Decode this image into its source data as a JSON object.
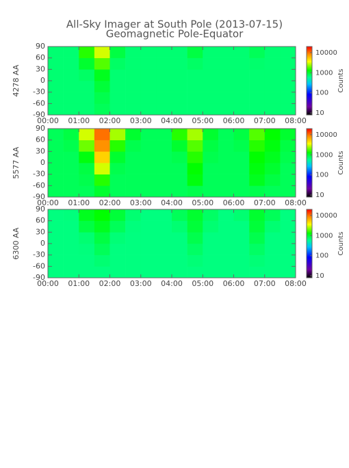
{
  "title": "All-Sky Imager at South Pole (2013-07-15)",
  "subtitle": "Geomagnetic Pole-Equator",
  "chart_data": [
    {
      "type": "heatmap",
      "ylabel": "4278 AA",
      "colorbar_label": "Counts",
      "x_bins": [
        0,
        0.5,
        1,
        1.5,
        2,
        2.5,
        3,
        3.5,
        4,
        4.5,
        5,
        5.5,
        6,
        6.5,
        7,
        7.5,
        8
      ],
      "y_bins": [
        -90,
        -60,
        -30,
        0,
        30,
        60,
        90
      ],
      "values": [
        [
          700,
          700,
          700,
          800,
          700,
          700,
          700,
          700,
          700,
          700,
          700,
          700,
          700,
          700,
          700,
          700
        ],
        [
          700,
          700,
          700,
          850,
          700,
          700,
          700,
          700,
          700,
          700,
          700,
          700,
          700,
          700,
          700,
          700
        ],
        [
          700,
          700,
          700,
          950,
          700,
          700,
          700,
          700,
          700,
          700,
          700,
          700,
          700,
          700,
          700,
          700
        ],
        [
          700,
          700,
          750,
          1100,
          700,
          700,
          700,
          700,
          700,
          700,
          700,
          700,
          700,
          700,
          700,
          700
        ],
        [
          700,
          700,
          1000,
          1800,
          750,
          700,
          700,
          700,
          700,
          750,
          700,
          700,
          700,
          720,
          700,
          700
        ],
        [
          700,
          700,
          1500,
          3000,
          900,
          700,
          700,
          700,
          700,
          900,
          700,
          700,
          700,
          800,
          700,
          700
        ]
      ],
      "xlim": [
        0,
        8
      ],
      "xticks": [
        {
          "value": 0,
          "label": "00:00"
        },
        {
          "value": 1,
          "label": "01:00"
        },
        {
          "value": 2,
          "label": "02:00"
        },
        {
          "value": 3,
          "label": "03:00"
        },
        {
          "value": 4,
          "label": "04:00"
        },
        {
          "value": 5,
          "label": "05:00"
        },
        {
          "value": 6,
          "label": "06:00"
        },
        {
          "value": 7,
          "label": "07:00"
        },
        {
          "value": 8,
          "label": "08:00"
        }
      ],
      "ylim": [
        -90,
        90
      ],
      "yticks": [
        90,
        60,
        30,
        0,
        -30,
        -60,
        -90
      ],
      "zlim": [
        8,
        20000
      ],
      "zticks": [
        10000,
        1000,
        100,
        10
      ],
      "log_color_scale": true
    },
    {
      "type": "heatmap",
      "ylabel": "5577 AA",
      "colorbar_label": "Counts",
      "x_bins": [
        0,
        0.5,
        1,
        1.5,
        2,
        2.5,
        3,
        3.5,
        4,
        4.5,
        5,
        5.5,
        6,
        6.5,
        7,
        7.5,
        8
      ],
      "y_bins": [
        -90,
        -60,
        -30,
        0,
        30,
        60,
        90
      ],
      "values": [
        [
          800,
          800,
          800,
          1000,
          800,
          800,
          800,
          800,
          800,
          850,
          800,
          800,
          800,
          850,
          800,
          800
        ],
        [
          800,
          800,
          850,
          1500,
          800,
          800,
          800,
          800,
          800,
          1200,
          800,
          800,
          800,
          1100,
          900,
          800
        ],
        [
          800,
          800,
          900,
          3000,
          850,
          800,
          800,
          800,
          800,
          1300,
          800,
          800,
          800,
          1200,
          1000,
          800
        ],
        [
          800,
          800,
          1200,
          5000,
          1000,
          800,
          800,
          800,
          850,
          1500,
          850,
          800,
          800,
          1300,
          1100,
          850
        ],
        [
          800,
          850,
          2000,
          8000,
          1500,
          850,
          800,
          800,
          1000,
          1800,
          900,
          800,
          850,
          1500,
          1200,
          900
        ],
        [
          800,
          900,
          3000,
          10000,
          2500,
          1000,
          800,
          800,
          1500,
          2500,
          1000,
          800,
          900,
          1800,
          1300,
          1000
        ]
      ],
      "xlim": [
        0,
        8
      ],
      "xticks": [
        {
          "value": 0,
          "label": "00:00"
        },
        {
          "value": 1,
          "label": "01:00"
        },
        {
          "value": 2,
          "label": "02:00"
        },
        {
          "value": 3,
          "label": "03:00"
        },
        {
          "value": 4,
          "label": "04:00"
        },
        {
          "value": 5,
          "label": "05:00"
        },
        {
          "value": 6,
          "label": "06:00"
        },
        {
          "value": 7,
          "label": "07:00"
        },
        {
          "value": 8,
          "label": "08:00"
        }
      ],
      "ylim": [
        -90,
        90
      ],
      "yticks": [
        90,
        60,
        30,
        0,
        -30,
        -60,
        -90
      ],
      "zlim": [
        8,
        20000
      ],
      "zticks": [
        10000,
        1000,
        100,
        10
      ],
      "log_color_scale": true
    },
    {
      "type": "heatmap",
      "ylabel": "6300 AA",
      "colorbar_label": "Counts",
      "x_bins": [
        0,
        0.5,
        1,
        1.5,
        2,
        2.5,
        3,
        3.5,
        4,
        4.5,
        5,
        5.5,
        6,
        6.5,
        7,
        7.5,
        8
      ],
      "y_bins": [
        -90,
        -60,
        -30,
        0,
        30,
        60,
        90
      ],
      "values": [
        [
          650,
          650,
          650,
          650,
          650,
          650,
          650,
          650,
          650,
          650,
          650,
          650,
          650,
          650,
          650,
          650
        ],
        [
          650,
          650,
          650,
          700,
          650,
          650,
          650,
          650,
          650,
          680,
          650,
          650,
          650,
          680,
          650,
          650
        ],
        [
          650,
          650,
          660,
          800,
          650,
          650,
          650,
          650,
          650,
          750,
          650,
          650,
          650,
          750,
          650,
          650
        ],
        [
          650,
          650,
          700,
          900,
          680,
          650,
          650,
          650,
          650,
          850,
          650,
          650,
          650,
          850,
          650,
          650
        ],
        [
          650,
          650,
          900,
          1100,
          800,
          660,
          650,
          650,
          700,
          950,
          700,
          650,
          650,
          950,
          700,
          650
        ],
        [
          650,
          660,
          1100,
          1300,
          950,
          700,
          650,
          650,
          800,
          1000,
          750,
          650,
          700,
          1000,
          800,
          650
        ]
      ],
      "xlim": [
        0,
        8
      ],
      "xticks": [
        {
          "value": 0,
          "label": "00:00"
        },
        {
          "value": 1,
          "label": "01:00"
        },
        {
          "value": 2,
          "label": "02:00"
        },
        {
          "value": 3,
          "label": "03:00"
        },
        {
          "value": 4,
          "label": "04:00"
        },
        {
          "value": 5,
          "label": "05:00"
        },
        {
          "value": 6,
          "label": "06:00"
        },
        {
          "value": 7,
          "label": "07:00"
        },
        {
          "value": 8,
          "label": "08:00"
        }
      ],
      "ylim": [
        -90,
        90
      ],
      "yticks": [
        90,
        60,
        30,
        0,
        -30,
        -60,
        -90
      ],
      "zlim": [
        8,
        20000
      ],
      "zticks": [
        10000,
        1000,
        100,
        10
      ],
      "log_color_scale": true
    }
  ]
}
